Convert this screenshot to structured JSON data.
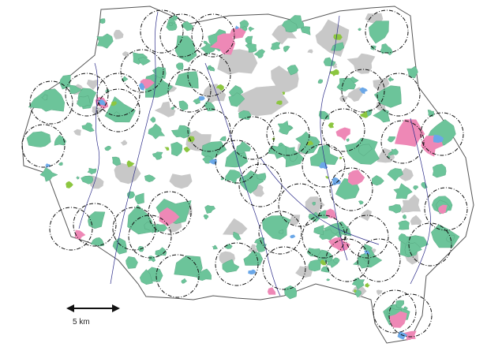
{
  "scale_bar": {
    "label": "5 km"
  },
  "colors": {
    "background": "#ffffff",
    "region_fill": "#ffffff",
    "region_outline": "#555555",
    "forest": "#6cc49a",
    "urban": "#c8c8c8",
    "wetland": "#ee88b6",
    "water": "#6aa7e8",
    "grassland": "#8cc640",
    "rivers": "#2e2e8a",
    "sample_circle": "#111111"
  },
  "legend_note": "",
  "sample_circle_count": 42
}
